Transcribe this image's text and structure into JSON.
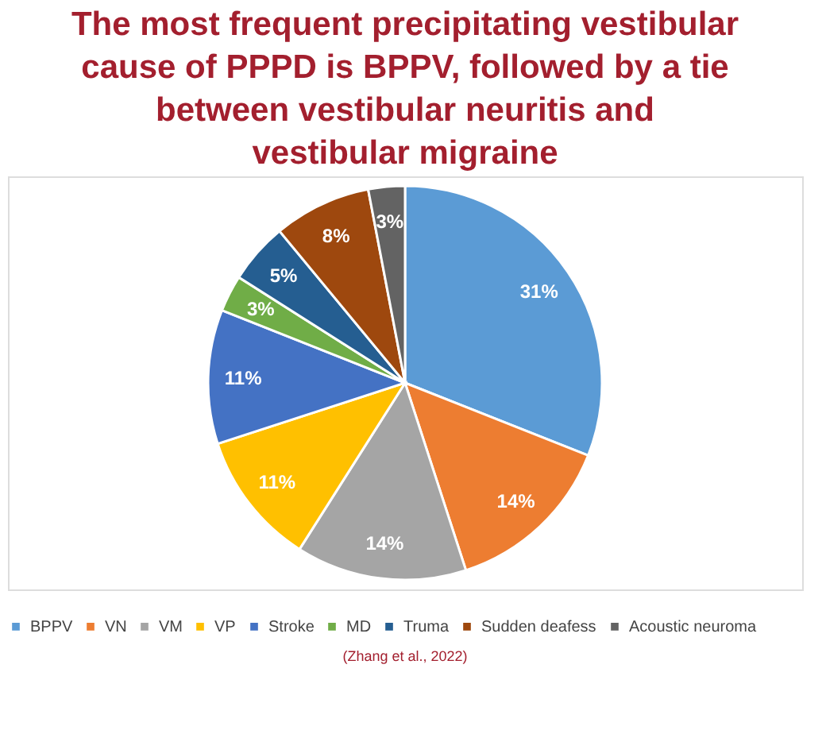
{
  "chart_data": {
    "type": "pie",
    "title": [
      "The most frequent precipitating vestibular",
      "cause of PPPD is BPPV, followed by a tie",
      "between vestibular neuritis and",
      "vestibular migraine"
    ],
    "categories": [
      "BPPV",
      "VN",
      "VM",
      "VP",
      "Stroke",
      "MD",
      "Truma",
      "Sudden deafess",
      "Acoustic neuroma"
    ],
    "values": [
      31,
      14,
      14,
      11,
      11,
      3,
      5,
      8,
      3
    ],
    "value_labels": [
      "31%",
      "14%",
      "14%",
      "11%",
      "11%",
      "3%",
      "5%",
      "8%",
      "3%"
    ],
    "colors": [
      "#5b9bd5",
      "#ed7d31",
      "#a5a5a5",
      "#ffc000",
      "#4472c4",
      "#70ad47",
      "#255e91",
      "#9e480e",
      "#636363"
    ],
    "legend": "bottom",
    "annotations": [
      "(Zhang et al., 2022)"
    ]
  }
}
